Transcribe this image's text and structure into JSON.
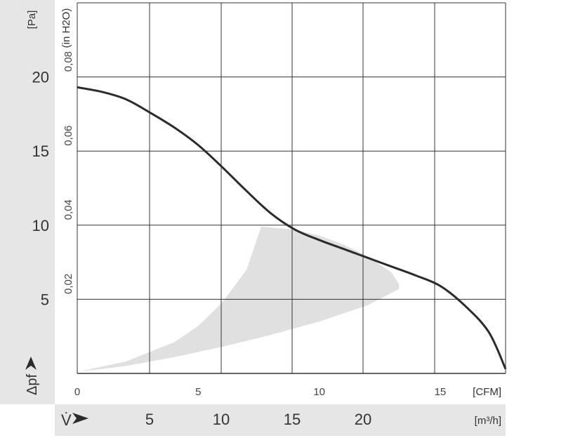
{
  "chart_data": {
    "type": "line",
    "title": "",
    "series": [
      {
        "x": [
          0,
          1,
          2,
          3,
          4,
          5,
          6,
          7,
          8,
          9,
          10,
          11,
          12,
          13,
          14,
          15,
          16,
          17,
          17.7
        ],
        "y": [
          19.3,
          19.0,
          18.5,
          17.6,
          16.6,
          15.4,
          13.9,
          12.3,
          10.8,
          9.7,
          9.0,
          8.4,
          7.8,
          7.2,
          6.6,
          5.9,
          4.6,
          2.8,
          0.3
        ]
      }
    ],
    "operating_region": {
      "lower_edge": {
        "x": [
          0,
          2,
          4,
          6,
          8,
          10,
          12,
          13.3
        ],
        "y": [
          0.1,
          0.5,
          1.1,
          1.8,
          2.6,
          3.5,
          4.6,
          5.7
        ]
      },
      "upper_edge": {
        "x": [
          0,
          2,
          4,
          5,
          6,
          7,
          7.6
        ],
        "y": [
          0.1,
          0.8,
          2.1,
          3.2,
          4.8,
          7.0,
          9.9
        ]
      },
      "outer_edge": {
        "x": [
          7.6,
          9,
          10,
          11,
          12,
          13,
          13.3
        ],
        "y": [
          9.9,
          9.7,
          9.3,
          8.7,
          7.9,
          6.8,
          6.0
        ]
      },
      "fill": "#e0e0e0"
    },
    "y_axis": {
      "label": "[Pa]",
      "symbol": "Δpf",
      "ticks": [
        "5",
        "10",
        "15",
        "20"
      ],
      "range": [
        0,
        25
      ]
    },
    "y2_axis": {
      "label": "(in H2O)",
      "ticks": [
        "0,02",
        "0,04",
        "0,06",
        "0,08"
      ]
    },
    "x_axis": {
      "label": "[CFM]",
      "ticks": [
        "0",
        "5",
        "10",
        "15"
      ],
      "range": [
        0,
        17.7
      ]
    },
    "x2_axis": {
      "label": "[m³/h]",
      "symbol": "V̇",
      "ticks": [
        "5",
        "10",
        "15",
        "20"
      ]
    },
    "grid": true,
    "colors": {
      "curve": "#2b2b2b",
      "grid": "#333333",
      "band": "#e6e6e6",
      "region": "#e0e0e0"
    }
  }
}
